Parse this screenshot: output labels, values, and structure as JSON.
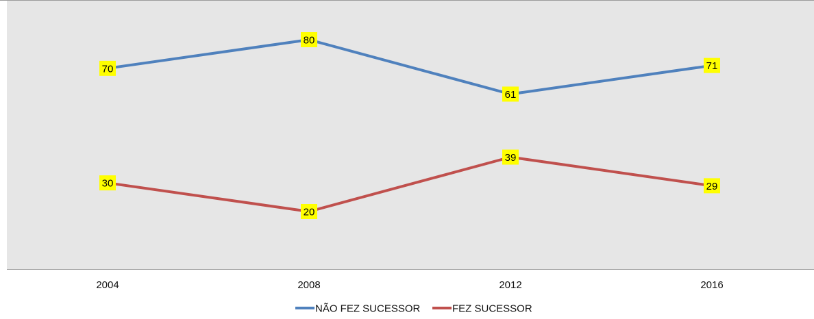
{
  "chart_data": {
    "type": "line",
    "categories": [
      "2004",
      "2008",
      "2012",
      "2016"
    ],
    "series": [
      {
        "name": "NÃO FEZ SUCESSOR",
        "values": [
          70,
          80,
          61,
          71
        ],
        "color": "#4f81bd"
      },
      {
        "name": "FEZ SUCESSOR",
        "values": [
          30,
          20,
          39,
          29
        ],
        "color": "#c0504d"
      }
    ],
    "ylim": [
      0,
      100
    ],
    "grid": false,
    "legend_position": "bottom",
    "plot_background": "#e6e6e6",
    "data_label_background": "#ffff00"
  }
}
